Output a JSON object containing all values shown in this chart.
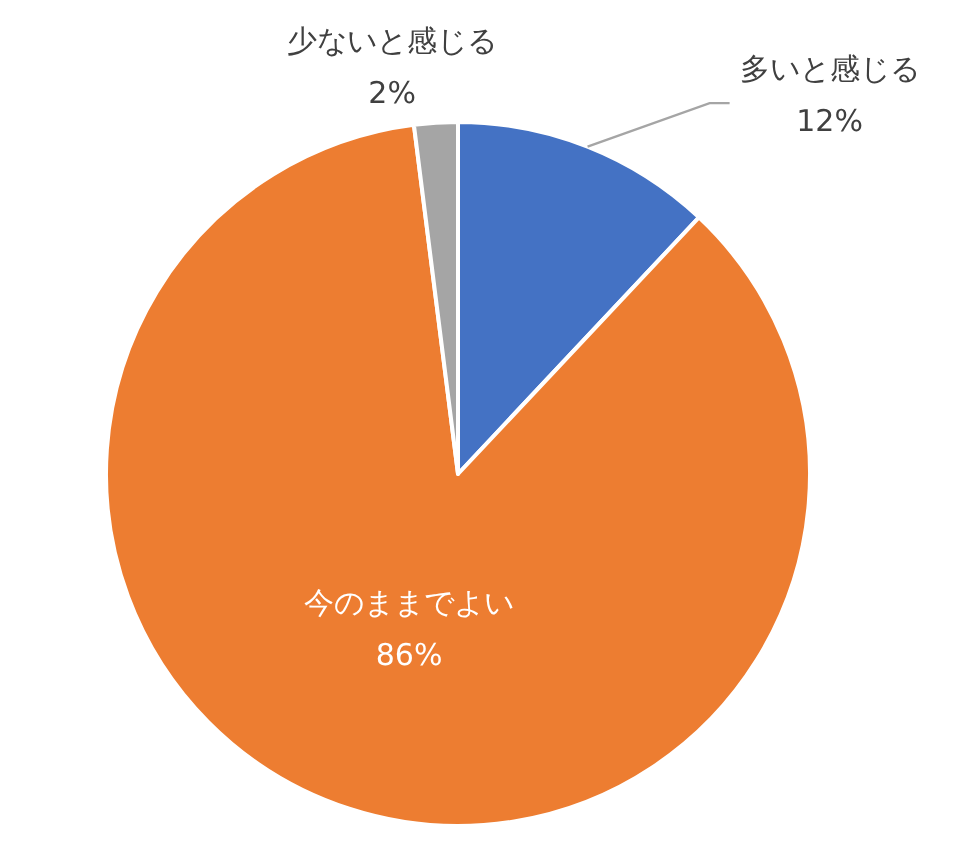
{
  "chart_data": {
    "type": "pie",
    "categories": [
      "多いと感じる",
      "今のままでよい",
      "少ないと感じる"
    ],
    "values": [
      12,
      86,
      2
    ],
    "colors": [
      "#4472c4",
      "#ed7d31",
      "#a5a5a5"
    ],
    "value_labels": [
      "12%",
      "86%",
      "2%"
    ]
  }
}
